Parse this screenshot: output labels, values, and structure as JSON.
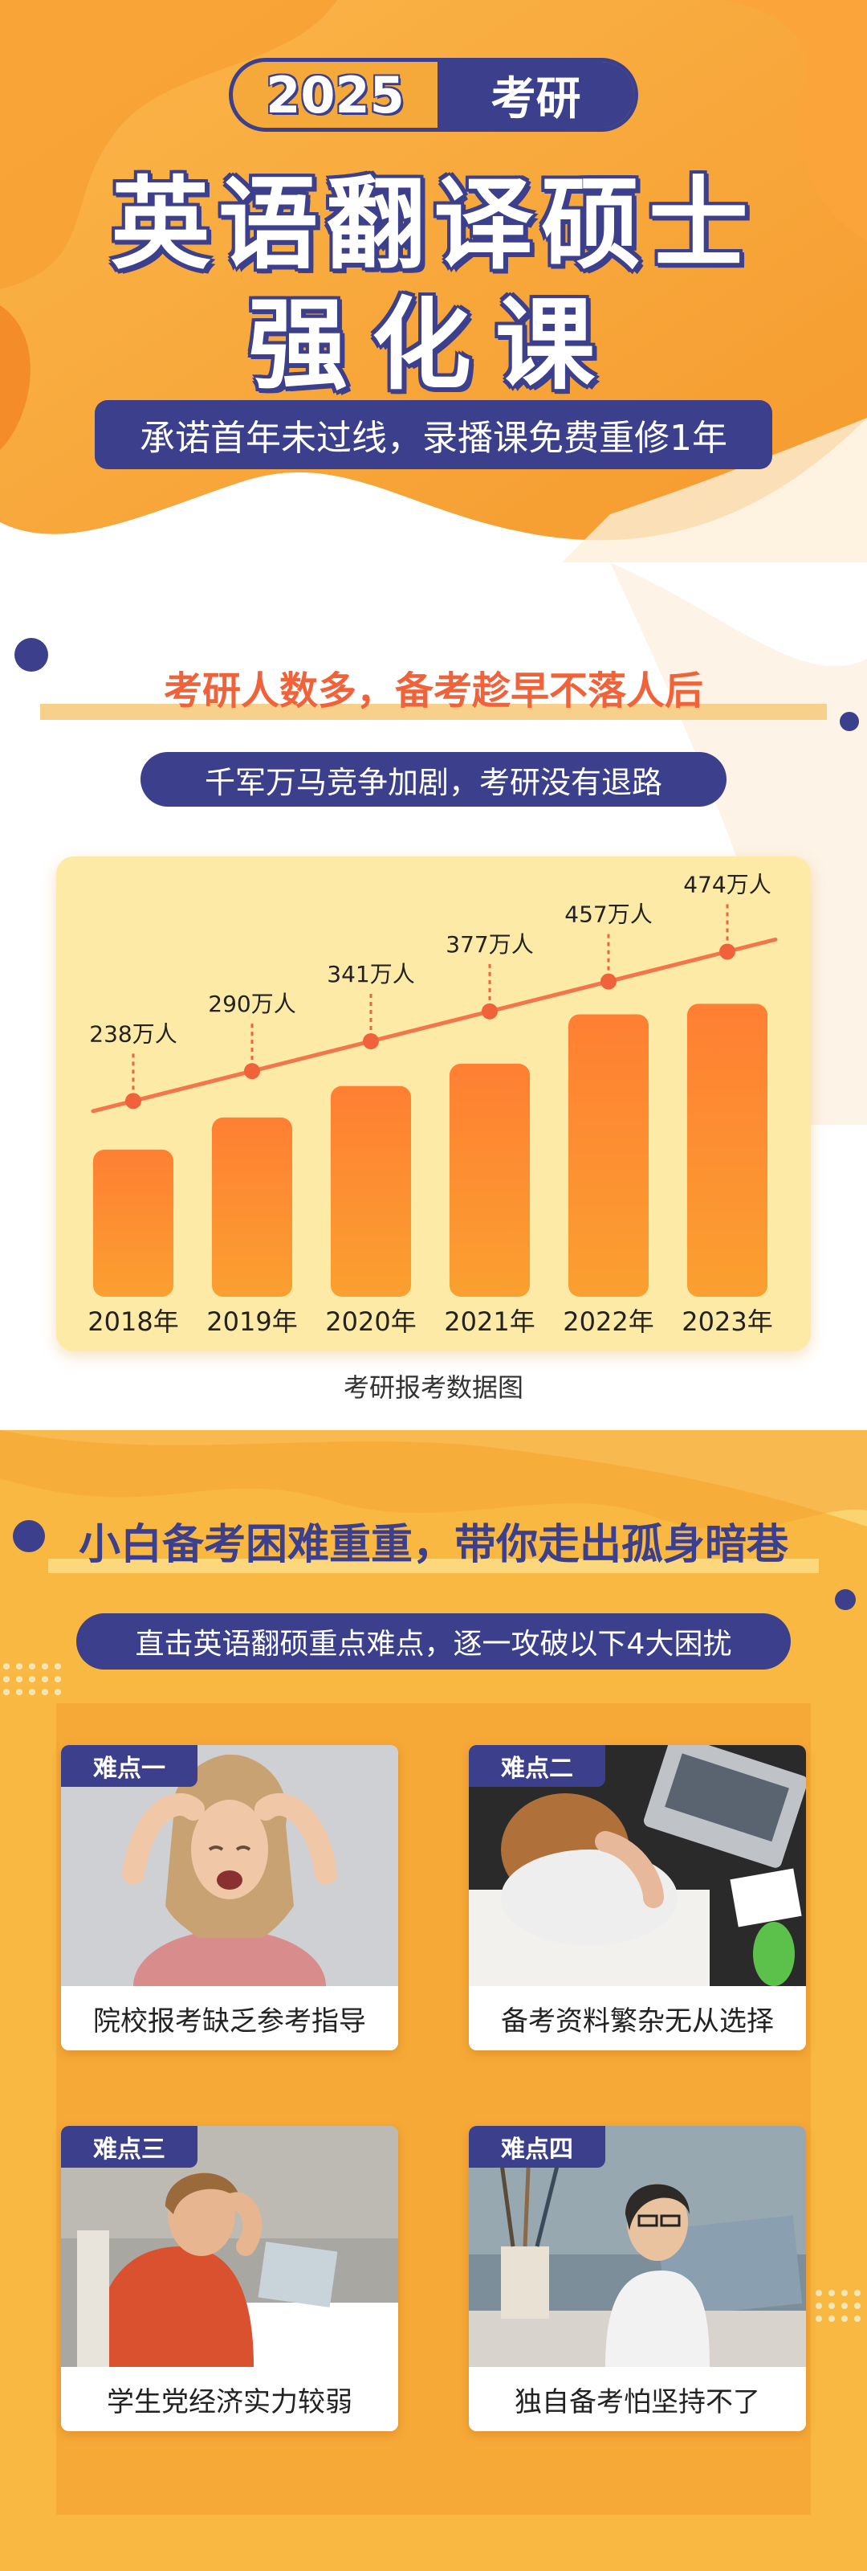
{
  "hero": {
    "year": "2025",
    "exam": "考研",
    "title_line1": "英语翻译硕士",
    "title_line2": "强化课",
    "promise": "承诺首年未过线，录播课免费重修1年"
  },
  "section_stats": {
    "heading": "考研人数多，备考趁早不落人后",
    "subheading": "千军万马竞争加剧，考研没有退路",
    "caption": "考研报考数据图"
  },
  "chart_data": {
    "type": "bar",
    "categories": [
      "2018年",
      "2019年",
      "2020年",
      "2021年",
      "2022年",
      "2023年"
    ],
    "values": [
      238,
      290,
      341,
      377,
      457,
      474
    ],
    "value_labels": [
      "238万人",
      "290万人",
      "341万人",
      "377万人",
      "457万人",
      "474万人"
    ],
    "title": "考研报考数据图",
    "xlabel": "",
    "ylabel": "",
    "grid": false,
    "trend_line": true,
    "colors": {
      "bar_top": "#ff8c3a",
      "bar_bottom": "#fba030",
      "trend": "#f0633a",
      "background": "#fdeaa6"
    }
  },
  "section_difficulties": {
    "heading": "小白备考困难重重，带你走出孤身暗巷",
    "subheading": "直击英语翻硕重点难点，逐一攻破以下4大困扰",
    "cards": [
      {
        "tag": "难点一",
        "caption": "院校报考缺乏参考指导"
      },
      {
        "tag": "难点二",
        "caption": "备考资料繁杂无从选择"
      },
      {
        "tag": "难点三",
        "caption": "学生党经济实力较弱"
      },
      {
        "tag": "难点四",
        "caption": "独自备考怕坚持不了"
      }
    ]
  },
  "colors": {
    "navy": "#3b3f8c",
    "orange": "#f7a937",
    "coral": "#f0633a",
    "cream": "#fdeaa6"
  }
}
